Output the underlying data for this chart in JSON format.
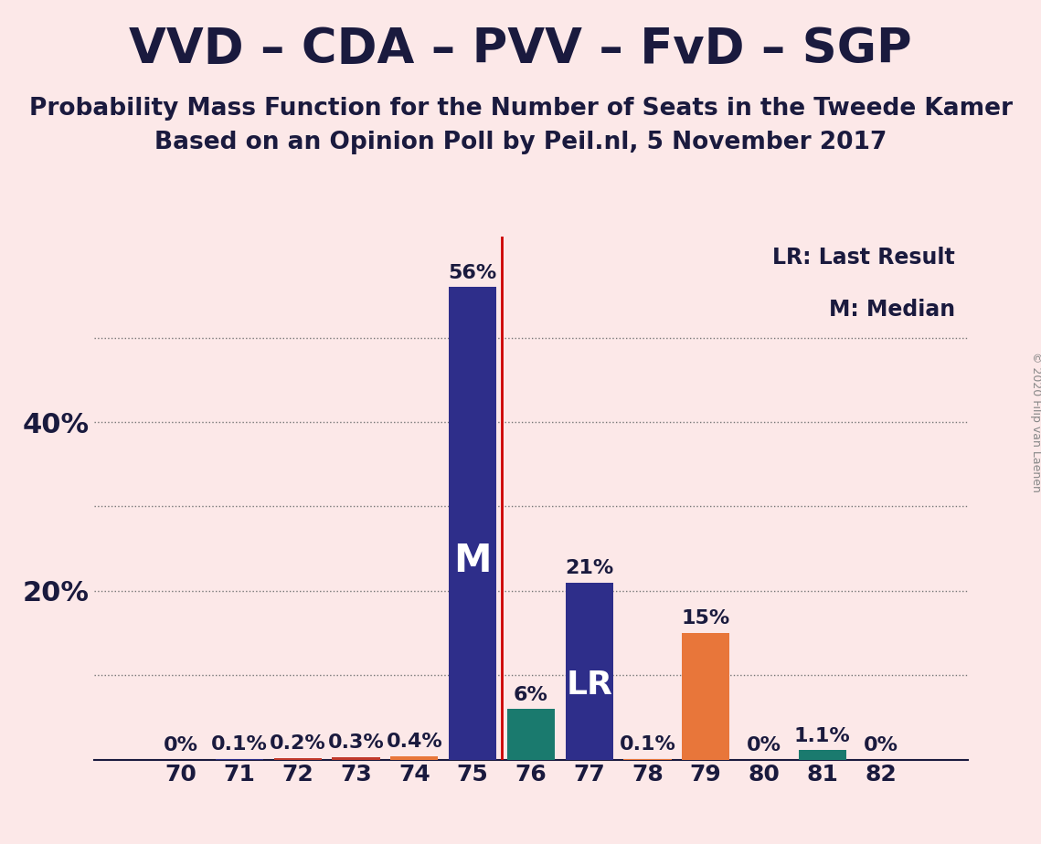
{
  "title": "VVD – CDA – PVV – FvD – SGP",
  "subtitle1": "Probability Mass Function for the Number of Seats in the Tweede Kamer",
  "subtitle2": "Based on an Opinion Poll by Peil.nl, 5 November 2017",
  "copyright": "© 2020 Filip van Laenen",
  "background_color": "#fce8e8",
  "seats": [
    70,
    71,
    72,
    73,
    74,
    75,
    76,
    77,
    78,
    79,
    80,
    81,
    82
  ],
  "probabilities": [
    0.0,
    0.1,
    0.2,
    0.3,
    0.4,
    56.0,
    6.0,
    21.0,
    0.1,
    15.0,
    0.0,
    1.1,
    0.0
  ],
  "bar_colors": [
    "#2e2e8a",
    "#2e2e8a",
    "#c0392b",
    "#c0392b",
    "#e8763a",
    "#2e2e8a",
    "#1a7a6e",
    "#2e2e8a",
    "#e8763a",
    "#e8763a",
    "#e8763a",
    "#1a7a6e",
    "#2e2e8a"
  ],
  "labels": [
    "0%",
    "0.1%",
    "0.2%",
    "0.3%",
    "0.4%",
    "56%",
    "6%",
    "21%",
    "0.1%",
    "15%",
    "0%",
    "1.1%",
    "0%"
  ],
  "median_seat": 75,
  "last_result_seat": 77,
  "median_label": "M",
  "lr_label": "LR",
  "lr_legend": "LR: Last Result",
  "m_legend": "M: Median",
  "vline_x": 75.5,
  "vline_color": "#cc0000",
  "title_color": "#1a1a3e",
  "grid_yticks": [
    10,
    20,
    30,
    40,
    50
  ],
  "ytick_positions": [
    20,
    40
  ],
  "ytick_labels": [
    "20%",
    "40%"
  ],
  "label_fontsize": 15,
  "title_fontsize": 38,
  "subtitle_fontsize": 19,
  "legend_fontsize": 17,
  "bar_label_fontsize": 16,
  "inside_label_fontsize": 30,
  "lr_inside_fontsize": 26,
  "copyright_fontsize": 9,
  "xlim": [
    68.5,
    83.5
  ],
  "ylim": [
    0,
    62
  ]
}
